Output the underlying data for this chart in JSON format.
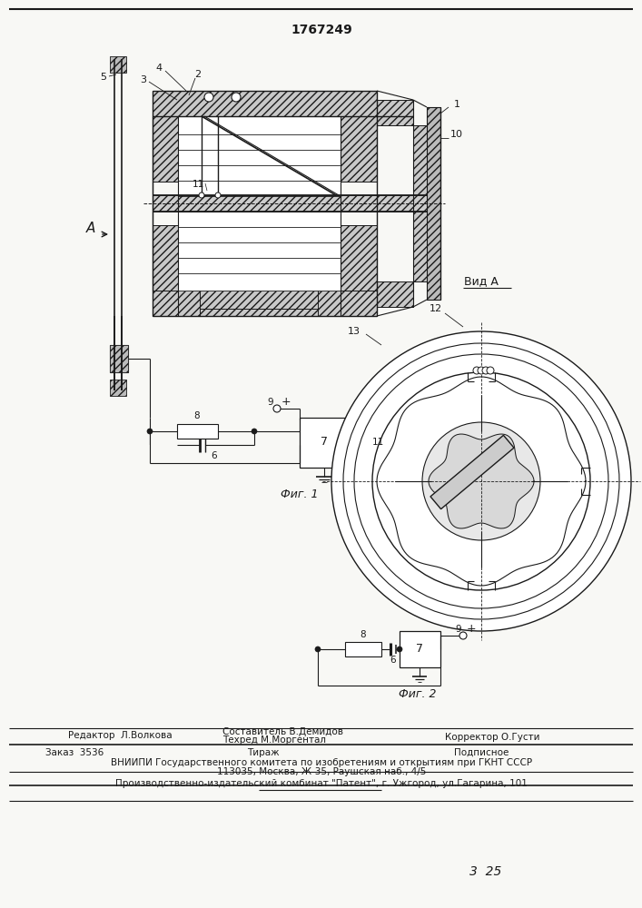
{
  "patent_number": "1767249",
  "bg_color": "#f8f8f5",
  "line_color": "#1a1a1a",
  "footer": {
    "editor": "Редактор  Л.Волкова",
    "compiler": "Составитель В.Демидов",
    "techred": "Техред М.Моргентал",
    "corrector": "Корректор О.Густи",
    "order": "Заказ  3536",
    "circulation": "Тираж",
    "subscription": "Подписное",
    "vniipи": "ВНИИПИ Государственного комитета по изобретениям и открытиям при ГКНТ СССР",
    "address": "113035, Москва, Ж-35, Раушская наб., 4/5",
    "plant": "Производственно-издательский комбинат \"Патент\", г. Ужгород, ул.Гагарина, 101"
  },
  "fig1_label": "Фиг. 1",
  "fig2_label": "Фиг. 2",
  "view_label": "Вид А",
  "arrow_label": "А"
}
